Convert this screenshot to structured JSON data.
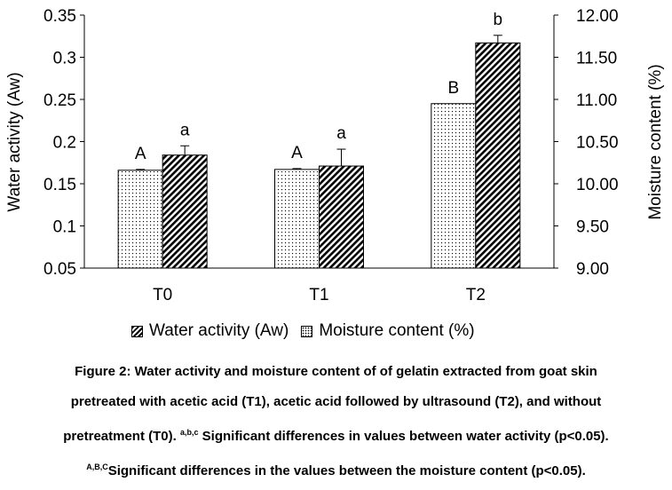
{
  "chart_data": {
    "type": "bar",
    "categories": [
      "T0",
      "T1",
      "T2"
    ],
    "series": [
      {
        "name": "Moisture content (%)",
        "axis": "right",
        "pattern": "dots",
        "values": [
          10.16,
          10.17,
          10.95
        ],
        "errors": [
          0.01,
          0.01,
          0.0
        ],
        "significance": [
          "A",
          "A",
          "B"
        ]
      },
      {
        "name": "Water activity (Aw)",
        "axis": "left",
        "pattern": "hatch",
        "values": [
          0.184,
          0.171,
          0.317
        ],
        "errors": [
          0.011,
          0.02,
          0.009
        ],
        "significance": [
          "a",
          "a",
          "b"
        ]
      }
    ],
    "y_left": {
      "label": "Water activity (Aw)",
      "ylim": [
        0.05,
        0.35
      ],
      "ticks": [
        "0.05",
        "0.1",
        "0.15",
        "0.2",
        "0.25",
        "0.3",
        "0.35"
      ]
    },
    "y_right": {
      "label": "Moisture content (%)",
      "ylim": [
        9.0,
        12.0
      ],
      "ticks": [
        "9.00",
        "9.50",
        "10.00",
        "10.50",
        "11.00",
        "11.50",
        "12.00"
      ]
    },
    "grid": false,
    "legend": {
      "placement": "bottom",
      "entries": [
        "Water activity (Aw)",
        "Moisture content (%)"
      ]
    }
  },
  "caption": {
    "line1": "Figure 2: Water activity and moisture content of of gelatin extracted from goat skin",
    "line2": "pretreated with acetic acid (T1), acetic acid followed by ultrasound (T2), and without",
    "line3_text": "pretreatment (T0).",
    "line3_sup": "a,b,c",
    "line3_rest": " Significant differences in values between water activity (p<0.05).",
    "line4_sup": "A,B,C",
    "line4_rest": "Significant differences in the values between the moisture content (p<0.05)."
  }
}
